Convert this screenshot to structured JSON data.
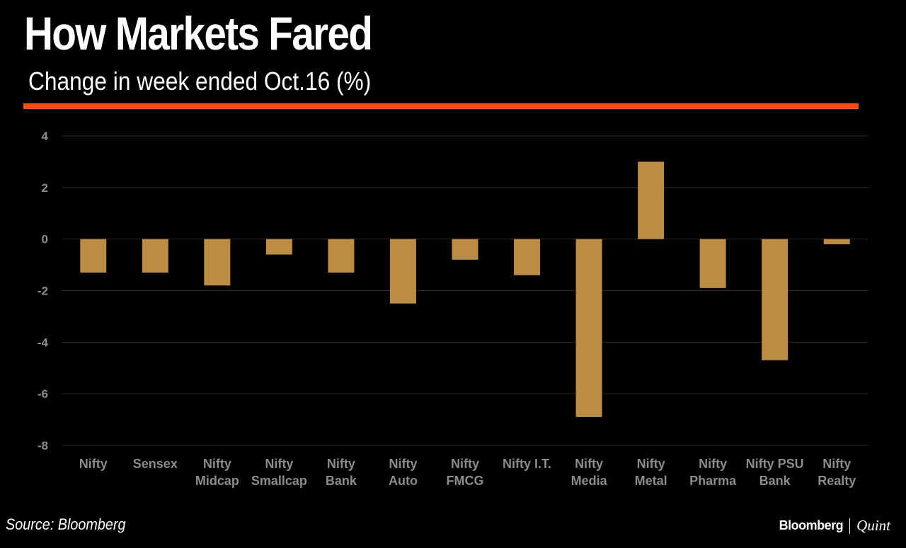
{
  "title": "How Markets Fared",
  "subtitle": "Change in week ended Oct.16 (%)",
  "source": "Source: Bloomberg",
  "brand": {
    "main": "Bloomberg",
    "sub": "Quint"
  },
  "colors": {
    "background": "#000000",
    "accent_rule": "#ff4a12",
    "bar": "#bb8c41",
    "grid": "#2a2a2a",
    "tick_label": "#8c8c8c"
  },
  "chart_data": {
    "type": "bar",
    "title": "How Markets Fared",
    "subtitle": "Change in week ended Oct.16 (%)",
    "categories": [
      [
        "Nifty"
      ],
      [
        "Sensex"
      ],
      [
        "Nifty",
        "Midcap"
      ],
      [
        "Nifty",
        "Smallcap"
      ],
      [
        "Nifty",
        "Bank"
      ],
      [
        "Nifty",
        "Auto"
      ],
      [
        "Nifty",
        "FMCG"
      ],
      [
        "Nifty I.T."
      ],
      [
        "Nifty",
        "Media"
      ],
      [
        "Nifty",
        "Metal"
      ],
      [
        "Nifty",
        "Pharma"
      ],
      [
        "Nifty PSU",
        "Bank"
      ],
      [
        "Nifty",
        "Realty"
      ]
    ],
    "values": [
      -1.3,
      -1.3,
      -1.8,
      -0.6,
      -1.3,
      -2.5,
      -0.8,
      -1.4,
      -6.9,
      3.0,
      -1.9,
      -4.7,
      -0.2
    ],
    "ylim": [
      -8,
      4
    ],
    "yticks": [
      4,
      2,
      0,
      -2,
      -4,
      -6,
      -8
    ],
    "grid": true,
    "legend": "none",
    "xlabel": "",
    "ylabel": ""
  }
}
